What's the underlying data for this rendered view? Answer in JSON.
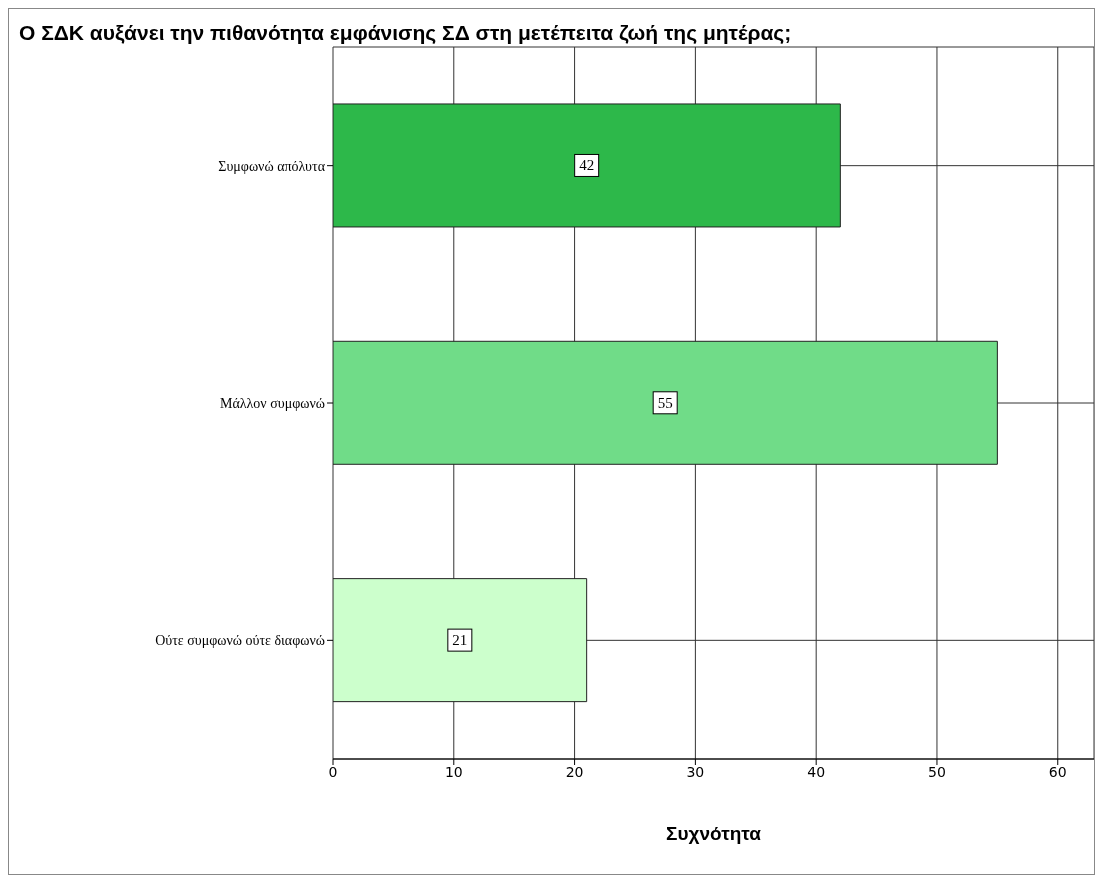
{
  "chart_data": {
    "type": "bar",
    "orientation": "horizontal",
    "title": "Ο ΣΔΚ αυξάνει την πιθανότητα εμφάνισης ΣΔ στη μετέπειτα ζωή της μητέρας;",
    "xlabel": "Συχνότητα",
    "categories": [
      "Συμφωνώ απόλυτα",
      "Μάλλον συμφωνώ",
      "Ούτε συμφωνώ ούτε διαφωνώ"
    ],
    "values": [
      42,
      55,
      21
    ],
    "colors": [
      "#2db84a",
      "#70dc88",
      "#ccffcc"
    ],
    "xlim": [
      0,
      63
    ],
    "xticks": [
      0,
      10,
      20,
      30,
      40,
      50,
      60
    ],
    "grid": true,
    "data_labels": true
  }
}
